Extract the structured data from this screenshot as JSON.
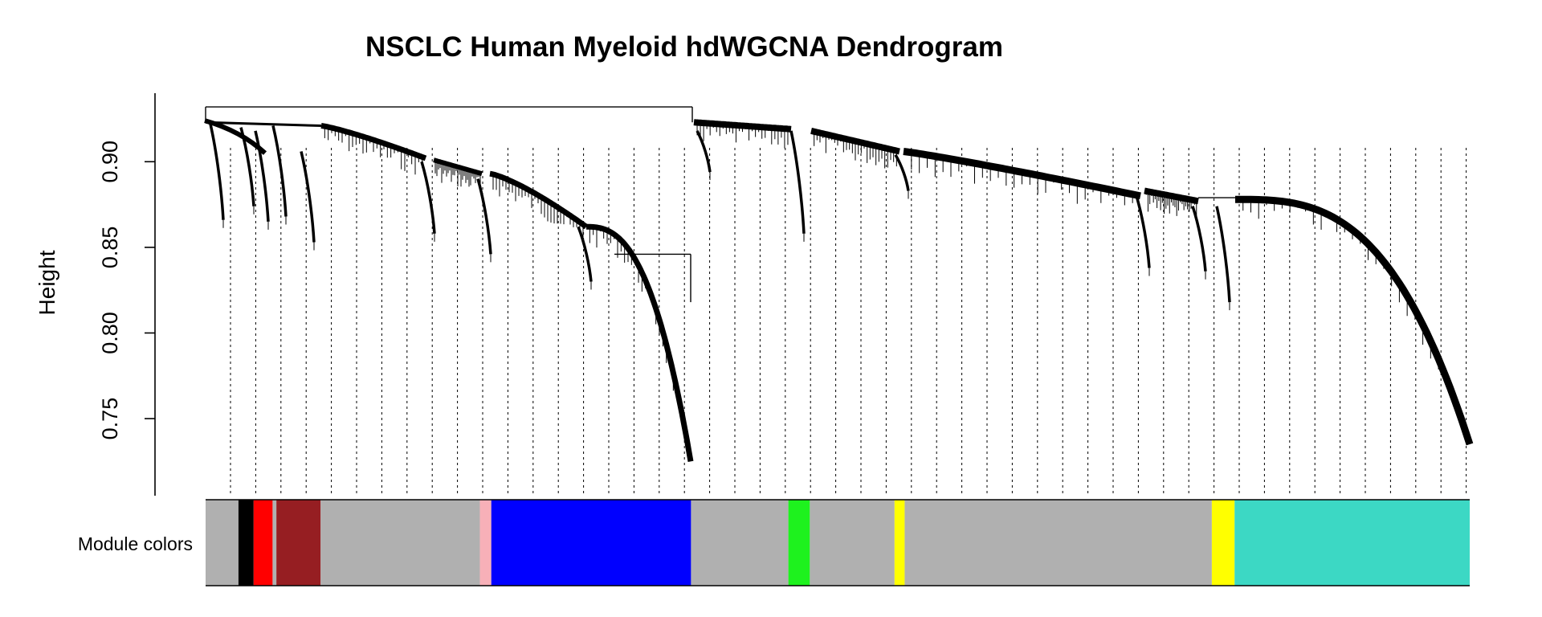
{
  "chart_data": {
    "type": "dendrogram",
    "title": "NSCLC Human Myeloid hdWGCNA Dendrogram",
    "ylabel": "Height",
    "xlabel": "",
    "ylim": [
      0.705,
      0.94
    ],
    "y_ticks": [
      0.75,
      0.8,
      0.85,
      0.9
    ],
    "y_tick_labels": [
      "0.75",
      "0.80",
      "0.85",
      "0.90"
    ],
    "color_row_label": "Module colors",
    "n_leaves": 1000,
    "root_height": 0.932,
    "left_clade": {
      "merge_height": 0.924,
      "sub_merge_heights": [
        0.923,
        0.921,
        0.921,
        0.905,
        0.9,
        0.895,
        0.893,
        0.882,
        0.866,
        0.856,
        0.845
      ],
      "min_height": 0.722
    },
    "right_clade": {
      "merge_height": 0.923,
      "sub_merge_heights": [
        0.919,
        0.918,
        0.916,
        0.906,
        0.904,
        0.893,
        0.891,
        0.885,
        0.88,
        0.877,
        0.872,
        0.858,
        0.843,
        0.828
      ],
      "min_height": 0.735
    },
    "modules": [
      {
        "color": "grey",
        "hex": "#B0B0B0",
        "leaf_fraction": [
          0.0,
          0.026
        ]
      },
      {
        "color": "black",
        "hex": "#000000",
        "leaf_fraction": [
          0.026,
          0.038
        ]
      },
      {
        "color": "red",
        "hex": "#FF0000",
        "leaf_fraction": [
          0.038,
          0.053
        ]
      },
      {
        "color": "grey",
        "hex": "#B0B0B0",
        "leaf_fraction": [
          0.053,
          0.056
        ]
      },
      {
        "color": "brown",
        "hex": "#961E22",
        "leaf_fraction": [
          0.056,
          0.091
        ]
      },
      {
        "color": "grey",
        "hex": "#B0B0B0",
        "leaf_fraction": [
          0.091,
          0.217
        ]
      },
      {
        "color": "pink",
        "hex": "#F7B0B8",
        "leaf_fraction": [
          0.217,
          0.226
        ]
      },
      {
        "color": "blue",
        "hex": "#0000FF",
        "leaf_fraction": [
          0.226,
          0.384
        ]
      },
      {
        "color": "grey",
        "hex": "#B0B0B0",
        "leaf_fraction": [
          0.384,
          0.461
        ]
      },
      {
        "color": "green",
        "hex": "#1EF21E",
        "leaf_fraction": [
          0.461,
          0.478
        ]
      },
      {
        "color": "grey",
        "hex": "#B0B0B0",
        "leaf_fraction": [
          0.478,
          0.545
        ]
      },
      {
        "color": "yellow",
        "hex": "#FFFF00",
        "leaf_fraction": [
          0.545,
          0.553
        ]
      },
      {
        "color": "grey",
        "hex": "#B0B0B0",
        "leaf_fraction": [
          0.553,
          0.796
        ]
      },
      {
        "color": "yellow",
        "hex": "#FFFF00",
        "leaf_fraction": [
          0.796,
          0.814
        ]
      },
      {
        "color": "turquoise",
        "hex": "#3CD8C4",
        "leaf_fraction": [
          0.814,
          1.0
        ]
      }
    ]
  }
}
